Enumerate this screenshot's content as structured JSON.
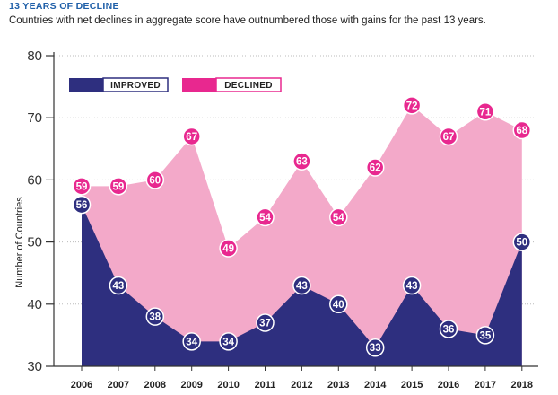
{
  "header": {
    "title": "13 YEARS OF DECLINE",
    "subtitle": "Countries with net declines in aggregate score have outnumbered those with gains for the past 13 years."
  },
  "colors": {
    "improved": "#2e2f7f",
    "declined_area": "#f3a9c9",
    "declined_marker": "#e8288f",
    "axis": "#333333",
    "grid": "#bbbbbb"
  },
  "chart_data": {
    "type": "area",
    "title": "13 YEARS OF DECLINE",
    "subtitle": "Countries with net declines in aggregate score have outnumbered those with gains for the past 13 years.",
    "xlabel": "",
    "ylabel": "Number of Countries",
    "ylim": [
      30,
      80
    ],
    "yticks": [
      30,
      40,
      50,
      60,
      70,
      80
    ],
    "grid": true,
    "legend": "top-left",
    "categories": [
      "2006",
      "2007",
      "2008",
      "2009",
      "2010",
      "2011",
      "2012",
      "2013",
      "2014",
      "2015",
      "2016",
      "2017",
      "2018"
    ],
    "series": [
      {
        "name": "IMPROVED",
        "values": [
          56,
          43,
          38,
          34,
          34,
          37,
          43,
          40,
          33,
          43,
          36,
          35,
          50
        ]
      },
      {
        "name": "DECLINED",
        "values": [
          59,
          59,
          60,
          67,
          49,
          54,
          63,
          54,
          62,
          72,
          67,
          71,
          68
        ]
      }
    ]
  }
}
